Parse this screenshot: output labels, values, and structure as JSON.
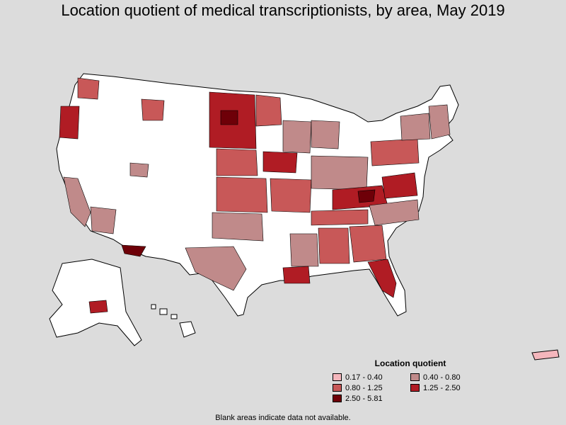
{
  "title": "Location quotient of medical transcriptionists, by area, May 2019",
  "legend": {
    "title": "Location quotient",
    "items": [
      {
        "label": "0.17 - 0.40",
        "color": "#f4b6bc"
      },
      {
        "label": "0.40 - 0.80",
        "color": "#c08a8a"
      },
      {
        "label": "0.80 - 1.25",
        "color": "#c85858"
      },
      {
        "label": "1.25 - 2.50",
        "color": "#b01c24"
      },
      {
        "label": "2.50 - 5.81",
        "color": "#6e0008"
      }
    ]
  },
  "note": "Blank areas indicate data not available.",
  "colors": {
    "background": "#dcdcdc",
    "no_data": "#ffffff",
    "border": "#000000"
  }
}
